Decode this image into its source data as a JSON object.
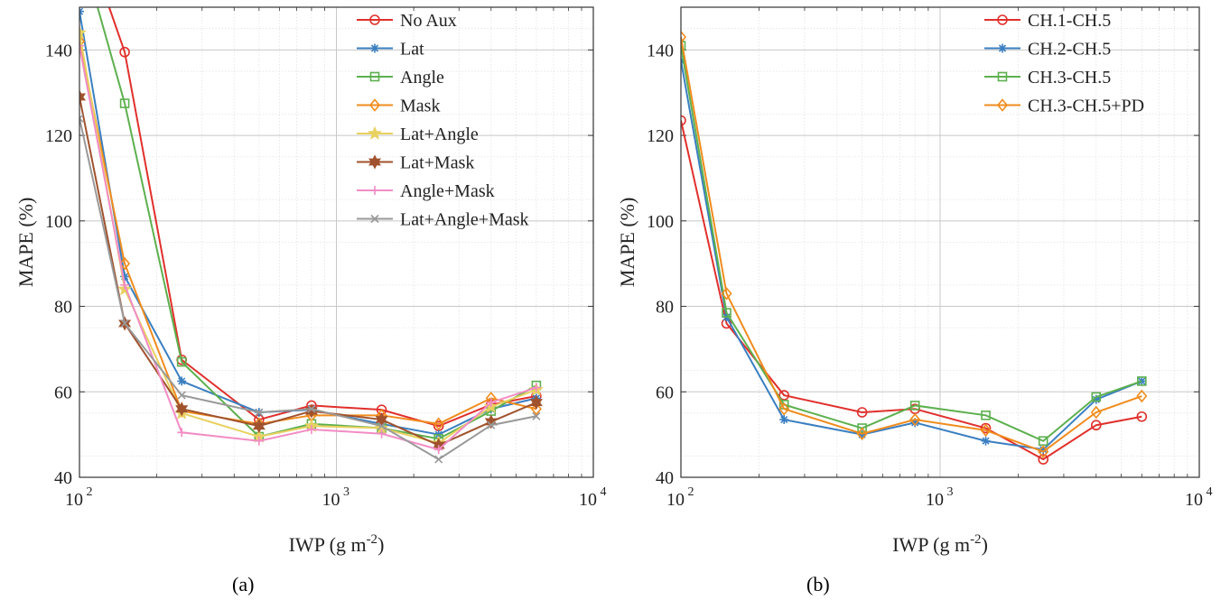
{
  "charts": [
    {
      "panel_label": "(a)",
      "xlabel_main": "IWP (g m",
      "xlabel_sup": "-2",
      "xlabel_end": ")",
      "ylabel": "MAPE (%)",
      "x_ticks": [
        {
          "base": "10",
          "exp": "2"
        },
        {
          "base": "10",
          "exp": "3"
        },
        {
          "base": "10",
          "exp": "4"
        }
      ],
      "y_ticks": [
        "40",
        "60",
        "80",
        "100",
        "120",
        "140"
      ]
    },
    {
      "panel_label": "(b)",
      "xlabel_main": "IWP (g m",
      "xlabel_sup": "-2",
      "xlabel_end": ")",
      "ylabel": "MAPE (%)",
      "x_ticks": [
        {
          "base": "10",
          "exp": "2"
        },
        {
          "base": "10",
          "exp": "3"
        },
        {
          "base": "10",
          "exp": "4"
        }
      ],
      "y_ticks": [
        "40",
        "60",
        "80",
        "100",
        "120",
        "140"
      ]
    }
  ],
  "chart_data": [
    {
      "type": "line",
      "xscale": "log",
      "xlim": [
        100,
        10000
      ],
      "ylim": [
        40,
        150
      ],
      "grid": true,
      "legend_position": "top-right",
      "x": [
        100,
        150,
        250,
        500,
        800,
        1500,
        2500,
        4000,
        6000
      ],
      "series": [
        {
          "name": "No Aux",
          "color": "#e0302c",
          "marker": "circle",
          "values": [
            170,
            139.5,
            67.5,
            53.5,
            56.8,
            55.8,
            52,
            57,
            59
          ]
        },
        {
          "name": "Lat",
          "color": "#3a7fc1",
          "marker": "asterisk",
          "values": [
            149,
            87,
            62.5,
            55.2,
            55.8,
            52.5,
            50,
            56,
            58.5
          ]
        },
        {
          "name": "Angle",
          "color": "#5db04e",
          "marker": "square",
          "values": [
            165,
            127.5,
            67,
            49.5,
            52.5,
            51.5,
            49,
            55.5,
            61.5
          ]
        },
        {
          "name": "Mask",
          "color": "#f08c1e",
          "marker": "diamond",
          "values": [
            142,
            90,
            55.5,
            52.5,
            54.5,
            54.5,
            52.5,
            58.5,
            56
          ]
        },
        {
          "name": "Lat+Angle",
          "color": "#e8d160",
          "marker": "star",
          "values": [
            144,
            84,
            55,
            49.5,
            52,
            51.5,
            48,
            56.5,
            60.5
          ]
        },
        {
          "name": "Lat+Mask",
          "color": "#a0522d",
          "marker": "hexagram",
          "values": [
            129,
            76,
            56,
            52,
            55.5,
            53.5,
            47.5,
            53,
            57.5
          ]
        },
        {
          "name": "Angle+Mask",
          "color": "#f28cc4",
          "marker": "plus",
          "values": [
            141,
            85,
            50.5,
            48.5,
            51.2,
            50.2,
            46.5,
            57.5,
            61
          ]
        },
        {
          "name": "Lat+Angle+Mask",
          "color": "#999999",
          "marker": "x",
          "values": [
            124,
            76,
            59.2,
            55.2,
            56,
            52,
            44.2,
            52.2,
            54.3
          ]
        }
      ]
    },
    {
      "type": "line",
      "xscale": "log",
      "xlim": [
        100,
        10000
      ],
      "ylim": [
        40,
        150
      ],
      "grid": true,
      "legend_position": "top-right",
      "x": [
        100,
        150,
        250,
        500,
        800,
        1500,
        2500,
        4000,
        6000
      ],
      "series": [
        {
          "name": "CH.1-CH.5",
          "color": "#e0302c",
          "marker": "circle",
          "values": [
            123.5,
            76,
            59.2,
            55.2,
            56,
            51.5,
            44.2,
            52.2,
            54.2
          ]
        },
        {
          "name": "CH.2-CH.5",
          "color": "#3a7fc1",
          "marker": "asterisk",
          "values": [
            137.5,
            77.5,
            53.5,
            50,
            52.8,
            48.5,
            46.5,
            58.2,
            62.5
          ]
        },
        {
          "name": "CH.3-CH.5",
          "color": "#5db04e",
          "marker": "square",
          "values": [
            141,
            78.5,
            57,
            51.5,
            56.8,
            54.5,
            48.5,
            58.8,
            62.5
          ]
        },
        {
          "name": "CH.3-CH.5+PD",
          "color": "#f08c1e",
          "marker": "diamond",
          "values": [
            143,
            83,
            56,
            50.2,
            53.5,
            51,
            46,
            55.2,
            59
          ]
        }
      ]
    }
  ]
}
